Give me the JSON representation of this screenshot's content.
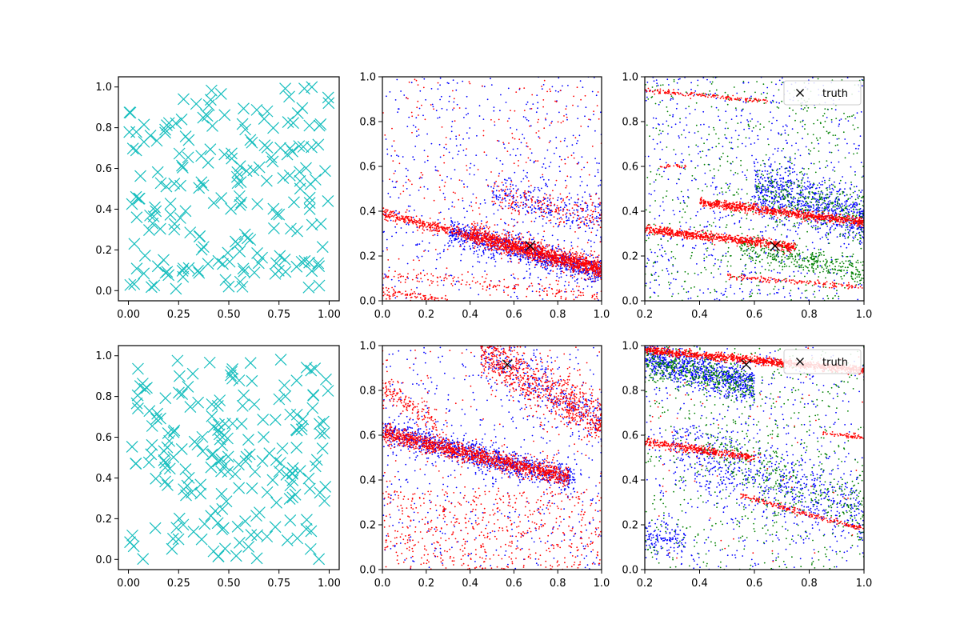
{
  "colors": {
    "cyan_marker": "#17bebe",
    "blue": "#0000ff",
    "red": "#ff0000",
    "green": "#008000",
    "truth_marker": "#000000",
    "axes": "#000000"
  },
  "chart_data": [
    {
      "id": "top-left",
      "type": "scatter",
      "marker": "x",
      "color": "cyan",
      "xlim": [
        -0.05,
        1.05
      ],
      "ylim": [
        -0.05,
        1.05
      ],
      "xticks": [
        "0.00",
        "0.25",
        "0.50",
        "0.75",
        "1.00"
      ],
      "yticks": [
        "0.0",
        "0.2",
        "0.4",
        "0.6",
        "0.8",
        "1.0"
      ],
      "series": [
        {
          "distribution": "uniform",
          "n": 200,
          "x_range": [
            0,
            1
          ],
          "y_range": [
            0,
            1
          ]
        }
      ]
    },
    {
      "id": "top-middle",
      "type": "scatter",
      "marker": "dot",
      "xlim": [
        0,
        1
      ],
      "ylim": [
        0,
        1
      ],
      "xticks": [
        "0.0",
        "0.2",
        "0.4",
        "0.6",
        "0.8",
        "1.0"
      ],
      "yticks": [
        "0.0",
        "0.2",
        "0.4",
        "0.6",
        "0.8",
        "1.0"
      ],
      "truth": [
        0.675,
        0.245
      ],
      "series": [
        {
          "color": "blue",
          "bands": [
            {
              "x": [
                0.3,
                1.0
              ],
              "line": [
                [
                  0.3,
                  0.31
                ],
                [
                  1.0,
                  0.13
                ]
              ],
              "spread": 0.03,
              "n": 900
            },
            {
              "x": [
                0.5,
                1.0
              ],
              "line": [
                [
                  0.5,
                  0.47
                ],
                [
                  1.0,
                  0.37
                ]
              ],
              "spread": 0.04,
              "n": 250
            },
            {
              "x": [
                0.0,
                1.0
              ],
              "uniform": [
                0.0,
                1.0
              ],
              "n": 550
            }
          ]
        },
        {
          "color": "red",
          "bands": [
            {
              "x": [
                0.0,
                1.0
              ],
              "line": [
                [
                  0.0,
                  0.39
                ],
                [
                  1.0,
                  0.14
                ]
              ],
              "spread": 0.012,
              "n": 800
            },
            {
              "x": [
                0.4,
                1.0
              ],
              "line": [
                [
                  0.4,
                  0.3
                ],
                [
                  1.0,
                  0.14
                ]
              ],
              "spread": 0.025,
              "n": 900
            },
            {
              "x": [
                0.0,
                0.3
              ],
              "line": [
                [
                  0.0,
                  0.04
                ],
                [
                  0.3,
                  0.0
                ]
              ],
              "spread": 0.01,
              "n": 100
            },
            {
              "x": [
                0.0,
                1.0
              ],
              "line": [
                [
                  0.0,
                  0.12
                ],
                [
                  1.0,
                  0.02
                ]
              ],
              "spread": 0.015,
              "n": 150
            },
            {
              "x": [
                0.5,
                1.0
              ],
              "line": [
                [
                  0.5,
                  0.47
                ],
                [
                  1.0,
                  0.37
                ]
              ],
              "spread": 0.04,
              "n": 180
            },
            {
              "x": [
                0.0,
                1.0
              ],
              "uniform": [
                0.0,
                1.0
              ],
              "n": 300
            }
          ]
        }
      ]
    },
    {
      "id": "top-right",
      "type": "scatter",
      "marker": "dot",
      "xlim": [
        0.2,
        1.0
      ],
      "ylim": [
        0,
        1
      ],
      "xticks": [
        "0.2",
        "0.4",
        "0.6",
        "0.8",
        "1.0"
      ],
      "yticks": [
        "0.0",
        "0.2",
        "0.4",
        "0.6",
        "0.8",
        "1.0"
      ],
      "truth": [
        0.675,
        0.245
      ],
      "legend": {
        "label": "truth",
        "position": "upper right"
      },
      "series": [
        {
          "color": "blue",
          "bands": [
            {
              "x": [
                0.6,
                1.0
              ],
              "line": [
                [
                  0.6,
                  0.52
                ],
                [
                  1.0,
                  0.36
                ]
              ],
              "spread": 0.06,
              "n": 700
            },
            {
              "x": [
                0.2,
                1.0
              ],
              "uniform": [
                0.0,
                1.0
              ],
              "n": 700
            }
          ]
        },
        {
          "color": "green",
          "bands": [
            {
              "x": [
                0.55,
                1.0
              ],
              "line": [
                [
                  0.55,
                  0.24
                ],
                [
                  1.0,
                  0.13
                ]
              ],
              "spread": 0.03,
              "n": 350
            },
            {
              "x": [
                0.6,
                1.0
              ],
              "line": [
                [
                  0.6,
                  0.5
                ],
                [
                  1.0,
                  0.38
                ]
              ],
              "spread": 0.06,
              "n": 300
            },
            {
              "x": [
                0.2,
                1.0
              ],
              "uniform": [
                0.0,
                1.0
              ],
              "n": 600
            }
          ]
        },
        {
          "color": "red",
          "bands": [
            {
              "x": [
                0.2,
                0.75
              ],
              "line": [
                [
                  0.2,
                  0.32
                ],
                [
                  0.75,
                  0.24
                ]
              ],
              "spread": 0.01,
              "n": 700
            },
            {
              "x": [
                0.4,
                1.0
              ],
              "line": [
                [
                  0.4,
                  0.44
                ],
                [
                  1.0,
                  0.35
                ]
              ],
              "spread": 0.01,
              "n": 800
            },
            {
              "x": [
                0.2,
                0.65
              ],
              "line": [
                [
                  0.2,
                  0.94
                ],
                [
                  0.65,
                  0.89
                ]
              ],
              "spread": 0.005,
              "n": 150
            },
            {
              "x": [
                0.5,
                1.0
              ],
              "line": [
                [
                  0.5,
                  0.11
                ],
                [
                  1.0,
                  0.06
                ]
              ],
              "spread": 0.006,
              "n": 150
            },
            {
              "x": [
                0.25,
                0.35
              ],
              "line": [
                [
                  0.25,
                  0.6
                ],
                [
                  0.35,
                  0.6
                ]
              ],
              "spread": 0.004,
              "n": 25
            }
          ]
        }
      ]
    },
    {
      "id": "bottom-left",
      "type": "scatter",
      "marker": "x",
      "color": "cyan",
      "xlim": [
        -0.05,
        1.05
      ],
      "ylim": [
        -0.05,
        1.05
      ],
      "xticks": [
        "0.00",
        "0.25",
        "0.50",
        "0.75",
        "1.00"
      ],
      "yticks": [
        "0.0",
        "0.2",
        "0.4",
        "0.6",
        "0.8",
        "1.0"
      ],
      "series": [
        {
          "distribution": "uniform",
          "n": 200,
          "x_range": [
            0,
            1
          ],
          "y_range": [
            0,
            1
          ]
        }
      ]
    },
    {
      "id": "bottom-middle",
      "type": "scatter",
      "marker": "dot",
      "xlim": [
        0,
        1
      ],
      "ylim": [
        0,
        1
      ],
      "xticks": [
        "0.0",
        "0.2",
        "0.4",
        "0.6",
        "0.8",
        "1.0"
      ],
      "yticks": [
        "0.0",
        "0.2",
        "0.4",
        "0.6",
        "0.8",
        "1.0"
      ],
      "truth": [
        0.57,
        0.915
      ],
      "series": [
        {
          "color": "blue",
          "bands": [
            {
              "x": [
                0.0,
                0.88
              ],
              "line": [
                [
                  0.0,
                  0.62
                ],
                [
                  0.88,
                  0.4
                ]
              ],
              "spread": 0.03,
              "n": 1000
            },
            {
              "x": [
                0.45,
                1.0
              ],
              "line": [
                [
                  0.45,
                  0.97
                ],
                [
                  1.0,
                  0.66
                ]
              ],
              "spread": 0.06,
              "n": 300
            },
            {
              "x": [
                0.0,
                1.0
              ],
              "uniform": [
                0.0,
                1.0
              ],
              "n": 500
            }
          ]
        },
        {
          "color": "red",
          "bands": [
            {
              "x": [
                0.0,
                0.85
              ],
              "line": [
                [
                  0.0,
                  0.61
                ],
                [
                  0.85,
                  0.41
                ]
              ],
              "spread": 0.02,
              "n": 1300
            },
            {
              "x": [
                0.45,
                1.0
              ],
              "line": [
                [
                  0.45,
                  0.98
                ],
                [
                  1.0,
                  0.66
                ]
              ],
              "spread": 0.06,
              "n": 800
            },
            {
              "x": [
                0.0,
                0.25
              ],
              "line": [
                [
                  0.0,
                  0.82
                ],
                [
                  0.25,
                  0.65
                ]
              ],
              "spread": 0.03,
              "n": 150
            },
            {
              "x": [
                0.0,
                1.0
              ],
              "uniform": [
                0.0,
                0.35
              ],
              "n": 500
            },
            {
              "x": [
                0.0,
                1.0
              ],
              "uniform": [
                0.0,
                1.0
              ],
              "n": 200
            }
          ]
        }
      ]
    },
    {
      "id": "bottom-right",
      "type": "scatter",
      "marker": "dot",
      "xlim": [
        0.2,
        1.0
      ],
      "ylim": [
        0,
        1
      ],
      "xticks": [
        "0.2",
        "0.4",
        "0.6",
        "0.8",
        "1.0"
      ],
      "yticks": [
        "0.0",
        "0.2",
        "0.4",
        "0.6",
        "0.8",
        "1.0"
      ],
      "truth": [
        0.57,
        0.915
      ],
      "legend": {
        "label": "truth",
        "position": "upper right"
      },
      "series": [
        {
          "color": "blue",
          "bands": [
            {
              "x": [
                0.2,
                0.6
              ],
              "line": [
                [
                  0.2,
                  0.95
                ],
                [
                  0.6,
                  0.82
                ]
              ],
              "spread": 0.04,
              "n": 800
            },
            {
              "x": [
                0.3,
                1.0
              ],
              "line": [
                [
                  0.3,
                  0.55
                ],
                [
                  1.0,
                  0.25
                ]
              ],
              "spread": 0.08,
              "n": 600
            },
            {
              "x": [
                0.2,
                0.35
              ],
              "line": [
                [
                  0.2,
                  0.15
                ],
                [
                  0.35,
                  0.12
                ]
              ],
              "spread": 0.04,
              "n": 120
            },
            {
              "x": [
                0.2,
                1.0
              ],
              "uniform": [
                0.0,
                1.0
              ],
              "n": 500
            }
          ]
        },
        {
          "color": "green",
          "bands": [
            {
              "x": [
                0.2,
                0.6
              ],
              "line": [
                [
                  0.2,
                  0.93
                ],
                [
                  0.6,
                  0.82
                ]
              ],
              "spread": 0.04,
              "n": 400
            },
            {
              "x": [
                0.4,
                1.0
              ],
              "line": [
                [
                  0.4,
                  0.55
                ],
                [
                  1.0,
                  0.25
                ]
              ],
              "spread": 0.07,
              "n": 300
            },
            {
              "x": [
                0.2,
                1.0
              ],
              "uniform": [
                0.0,
                1.0
              ],
              "n": 600
            }
          ]
        },
        {
          "color": "red",
          "bands": [
            {
              "x": [
                0.2,
                1.0
              ],
              "line": [
                [
                  0.2,
                  0.98
                ],
                [
                  1.0,
                  0.89
                ]
              ],
              "spread": 0.009,
              "n": 1100
            },
            {
              "x": [
                0.2,
                0.6
              ],
              "line": [
                [
                  0.2,
                  0.57
                ],
                [
                  0.6,
                  0.5
                ]
              ],
              "spread": 0.01,
              "n": 400
            },
            {
              "x": [
                0.55,
                1.0
              ],
              "line": [
                [
                  0.55,
                  0.33
                ],
                [
                  1.0,
                  0.18
                ]
              ],
              "spread": 0.006,
              "n": 200
            },
            {
              "x": [
                0.85,
                1.0
              ],
              "line": [
                [
                  0.85,
                  0.61
                ],
                [
                  1.0,
                  0.59
                ]
              ],
              "spread": 0.005,
              "n": 60
            },
            {
              "x": [
                0.2,
                1.0
              ],
              "uniform": [
                0.0,
                1.0
              ],
              "n": 80
            }
          ]
        }
      ]
    }
  ]
}
